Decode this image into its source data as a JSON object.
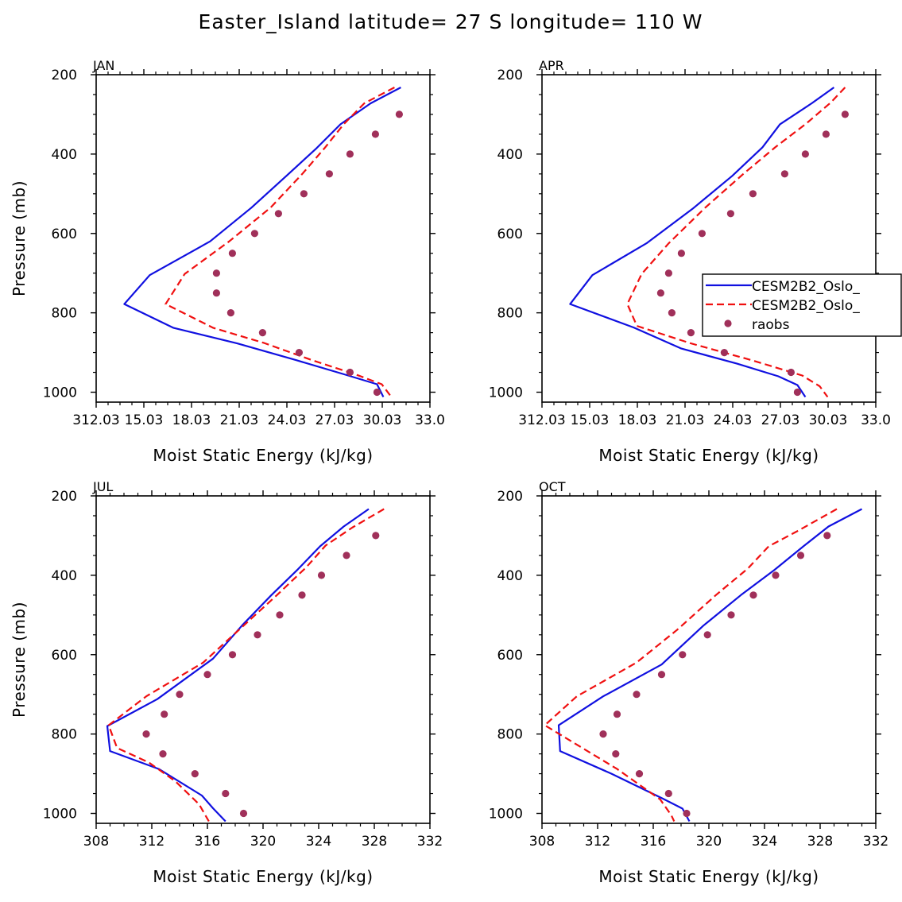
{
  "figure_title": "Easter_Island  latitude= 27 S longitude= 110 W",
  "colors": {
    "model1": "#1010e0",
    "model2": "#f01010",
    "obs": "#a0305a",
    "axis": "#000000"
  },
  "chart_data": [
    {
      "type": "line",
      "panel_label": "JAN",
      "xlabel": "Moist Static Energy (kJ/kg)",
      "ylabel": "Pressure (mb)",
      "xlim": [
        312.03,
        333.03
      ],
      "xticks": [
        312.03,
        315.03,
        318.03,
        321.03,
        324.03,
        327.03,
        330.03,
        333.03
      ],
      "xtick_labels": [
        "312.03",
        "15.03",
        "18.03",
        "21.03",
        "24.03",
        "27.03",
        "30.03",
        "33.0"
      ],
      "ylim": [
        1025,
        200
      ],
      "yticks": [
        200,
        400,
        600,
        800,
        1000
      ],
      "ytick_labels": [
        "200",
        "400",
        "600",
        "800",
        "1000"
      ],
      "series": [
        {
          "name": "CESM2B2_Oslo_",
          "style": "solid",
          "points": [
            [
              331.2,
              232
            ],
            [
              329.3,
              272
            ],
            [
              327.4,
              325
            ],
            [
              325.9,
              385
            ],
            [
              324.0,
              455
            ],
            [
              321.8,
              535
            ],
            [
              319.2,
              620
            ],
            [
              315.4,
              705
            ],
            [
              313.8,
              778
            ],
            [
              316.9,
              838
            ],
            [
              320.9,
              877
            ],
            [
              324.6,
              919
            ],
            [
              327.8,
              957
            ],
            [
              329.7,
              980
            ],
            [
              330.1,
              1012
            ]
          ]
        },
        {
          "name": "CESM2B2_Oslo_",
          "style": "dashed",
          "points": [
            [
              330.8,
              232
            ],
            [
              328.9,
              272
            ],
            [
              327.6,
              325
            ],
            [
              326.4,
              385
            ],
            [
              325.0,
              450
            ],
            [
              323.0,
              535
            ],
            [
              320.4,
              620
            ],
            [
              317.6,
              702
            ],
            [
              316.4,
              778
            ],
            [
              319.4,
              838
            ],
            [
              322.6,
              876
            ],
            [
              325.6,
              919
            ],
            [
              328.4,
              956
            ],
            [
              330.0,
              980
            ],
            [
              330.6,
              1012
            ]
          ]
        }
      ],
      "observations": {
        "name": "raobs",
        "points": [
          [
            331.1,
            300
          ],
          [
            329.6,
            350
          ],
          [
            328.0,
            400
          ],
          [
            326.7,
            450
          ],
          [
            325.1,
            500
          ],
          [
            323.5,
            550
          ],
          [
            322.0,
            600
          ],
          [
            320.6,
            650
          ],
          [
            319.6,
            700
          ],
          [
            319.6,
            750
          ],
          [
            320.5,
            800
          ],
          [
            322.5,
            850
          ],
          [
            324.8,
            900
          ],
          [
            328.0,
            950
          ],
          [
            329.7,
            1000
          ]
        ]
      }
    },
    {
      "type": "line",
      "panel_label": "APR",
      "xlabel": "Moist Static Energy (kJ/kg)",
      "ylabel": "",
      "xlim": [
        312.03,
        333.03
      ],
      "xticks": [
        312.03,
        315.03,
        318.03,
        321.03,
        324.03,
        327.03,
        330.03,
        333.03
      ],
      "xtick_labels": [
        "312.03",
        "15.03",
        "18.03",
        "21.03",
        "24.03",
        "27.03",
        "30.03",
        "33.0"
      ],
      "ylim": [
        1025,
        200
      ],
      "yticks": [
        200,
        400,
        600,
        800,
        1000
      ],
      "ytick_labels": [
        "200",
        "400",
        "600",
        "800",
        "1000"
      ],
      "legend": {
        "position": "right",
        "entries": [
          {
            "label": "CESM2B2_Oslo_",
            "style": "solid"
          },
          {
            "label": "CESM2B2_Oslo_",
            "style": "dashed"
          },
          {
            "label": "raobs",
            "style": "marker"
          }
        ]
      },
      "series": [
        {
          "name": "CESM2B2_Oslo_",
          "style": "solid",
          "points": [
            [
              330.4,
              232
            ],
            [
              329.0,
              272
            ],
            [
              327.0,
              325
            ],
            [
              325.9,
              383
            ],
            [
              324.0,
              455
            ],
            [
              321.5,
              538
            ],
            [
              318.6,
              625
            ],
            [
              315.2,
              705
            ],
            [
              313.8,
              778
            ],
            [
              317.8,
              837
            ],
            [
              320.8,
              890
            ],
            [
              324.3,
              928
            ],
            [
              326.9,
              960
            ],
            [
              328.1,
              982
            ],
            [
              328.6,
              1012
            ]
          ]
        },
        {
          "name": "CESM2B2_Oslo_",
          "style": "dashed",
          "points": [
            [
              331.1,
              232
            ],
            [
              330.2,
              270
            ],
            [
              328.6,
              325
            ],
            [
              326.7,
              383
            ],
            [
              324.7,
              450
            ],
            [
              322.3,
              535
            ],
            [
              320.0,
              625
            ],
            [
              318.3,
              702
            ],
            [
              317.4,
              778
            ],
            [
              318.0,
              833
            ],
            [
              321.4,
              877
            ],
            [
              325.2,
              919
            ],
            [
              328.4,
              958
            ],
            [
              329.5,
              985
            ],
            [
              330.0,
              1012
            ]
          ]
        }
      ],
      "observations": {
        "name": "raobs",
        "points": [
          [
            331.1,
            300
          ],
          [
            329.9,
            350
          ],
          [
            328.6,
            400
          ],
          [
            327.3,
            450
          ],
          [
            325.3,
            500
          ],
          [
            323.9,
            550
          ],
          [
            322.1,
            600
          ],
          [
            320.8,
            650
          ],
          [
            320.0,
            700
          ],
          [
            319.5,
            750
          ],
          [
            320.2,
            800
          ],
          [
            321.4,
            850
          ],
          [
            323.5,
            900
          ],
          [
            327.7,
            950
          ],
          [
            328.1,
            1000
          ]
        ]
      }
    },
    {
      "type": "line",
      "panel_label": "JUL",
      "xlabel": "Moist Static Energy (kJ/kg)",
      "ylabel": "Pressure (mb)",
      "xlim": [
        308,
        332
      ],
      "xticks": [
        308,
        312,
        316,
        320,
        324,
        328,
        332
      ],
      "xtick_labels": [
        "308",
        "312",
        "316",
        "320",
        "324",
        "328",
        "332"
      ],
      "ylim": [
        1025,
        200
      ],
      "yticks": [
        200,
        400,
        600,
        800,
        1000
      ],
      "ytick_labels": [
        "200",
        "400",
        "600",
        "800",
        "1000"
      ],
      "series": [
        {
          "name": "CESM2B2_Oslo_",
          "style": "solid",
          "points": [
            [
              327.6,
              233
            ],
            [
              325.8,
              277
            ],
            [
              324.1,
              327
            ],
            [
              322.5,
              385
            ],
            [
              320.6,
              450
            ],
            [
              318.5,
              526
            ],
            [
              316.4,
              610
            ],
            [
              312.4,
              712
            ],
            [
              308.8,
              780
            ],
            [
              309.0,
              843
            ],
            [
              312.5,
              888
            ],
            [
              315.6,
              955
            ],
            [
              316.4,
              987
            ],
            [
              317.3,
              1020
            ]
          ]
        },
        {
          "name": "CESM2B2_Oslo_",
          "style": "dashed",
          "points": [
            [
              328.7,
              233
            ],
            [
              326.4,
              280
            ],
            [
              324.5,
              325
            ],
            [
              323.1,
              380
            ],
            [
              321.0,
              450
            ],
            [
              318.5,
              530
            ],
            [
              315.7,
              620
            ],
            [
              311.6,
              705
            ],
            [
              308.9,
              778
            ],
            [
              309.5,
              835
            ],
            [
              311.8,
              872
            ],
            [
              313.7,
              919
            ],
            [
              315.4,
              977
            ],
            [
              316.1,
              1020
            ]
          ]
        }
      ],
      "observations": {
        "name": "raobs",
        "points": [
          [
            328.1,
            300
          ],
          [
            326.0,
            350
          ],
          [
            324.2,
            400
          ],
          [
            322.8,
            450
          ],
          [
            321.2,
            500
          ],
          [
            319.6,
            550
          ],
          [
            317.8,
            600
          ],
          [
            316.0,
            650
          ],
          [
            314.0,
            700
          ],
          [
            312.9,
            750
          ],
          [
            311.6,
            800
          ],
          [
            312.8,
            850
          ],
          [
            315.1,
            900
          ],
          [
            317.3,
            950
          ],
          [
            318.6,
            1000
          ]
        ]
      }
    },
    {
      "type": "line",
      "panel_label": "OCT",
      "xlabel": "Moist Static Energy (kJ/kg)",
      "ylabel": "",
      "xlim": [
        308,
        332
      ],
      "xticks": [
        308,
        312,
        316,
        320,
        324,
        328,
        332
      ],
      "xtick_labels": [
        "308",
        "312",
        "316",
        "320",
        "324",
        "328",
        "332"
      ],
      "ylim": [
        1025,
        200
      ],
      "yticks": [
        200,
        400,
        600,
        800,
        1000
      ],
      "ytick_labels": [
        "200",
        "400",
        "600",
        "800",
        "1000"
      ],
      "series": [
        {
          "name": "CESM2B2_Oslo_",
          "style": "solid",
          "points": [
            [
              331.0,
              233
            ],
            [
              328.6,
              277
            ],
            [
              326.8,
              327
            ],
            [
              324.7,
              387
            ],
            [
              322.3,
              450
            ],
            [
              319.6,
              527
            ],
            [
              316.6,
              625
            ],
            [
              312.4,
              705
            ],
            [
              309.2,
              778
            ],
            [
              309.3,
              843
            ],
            [
              313.0,
              900
            ],
            [
              316.7,
              963
            ],
            [
              318.1,
              988
            ],
            [
              318.6,
              1020
            ]
          ]
        },
        {
          "name": "CESM2B2_Oslo_",
          "style": "dashed",
          "points": [
            [
              329.2,
              233
            ],
            [
              326.3,
              290
            ],
            [
              324.3,
              327
            ],
            [
              322.8,
              383
            ],
            [
              320.5,
              450
            ],
            [
              317.7,
              538
            ],
            [
              314.8,
              620
            ],
            [
              310.5,
              705
            ],
            [
              308.2,
              778
            ],
            [
              310.8,
              833
            ],
            [
              313.4,
              888
            ],
            [
              316.5,
              965
            ],
            [
              317.3,
              1005
            ],
            [
              317.5,
              1020
            ]
          ]
        }
      ],
      "observations": {
        "name": "raobs",
        "points": [
          [
            328.5,
            300
          ],
          [
            326.6,
            350
          ],
          [
            324.8,
            400
          ],
          [
            323.2,
            450
          ],
          [
            321.6,
            500
          ],
          [
            319.9,
            550
          ],
          [
            318.1,
            600
          ],
          [
            316.6,
            650
          ],
          [
            314.8,
            700
          ],
          [
            313.4,
            750
          ],
          [
            312.4,
            800
          ],
          [
            313.3,
            850
          ],
          [
            315.0,
            900
          ],
          [
            317.1,
            950
          ],
          [
            318.4,
            1000
          ]
        ]
      }
    }
  ]
}
